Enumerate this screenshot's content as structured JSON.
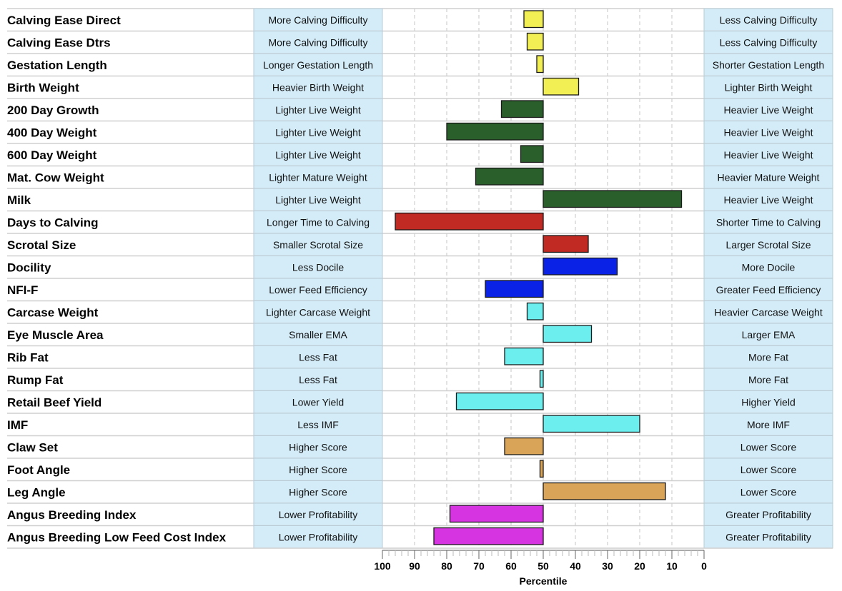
{
  "chart_data": {
    "type": "bar",
    "orientation": "horizontal",
    "xlabel": "Percentile",
    "xlim": [
      100,
      0
    ],
    "baseline": 50,
    "ticks": [
      100,
      90,
      80,
      70,
      60,
      50,
      40,
      30,
      20,
      10,
      0
    ],
    "tick_labels": [
      "100",
      "90",
      "80",
      "70",
      "60",
      "50",
      "40",
      "30",
      "20",
      "10",
      "0"
    ],
    "grid": true,
    "traits": [
      {
        "name": "Calving Ease Direct",
        "left": "More Calving Difficulty",
        "right": "Less Calving Difficulty",
        "value": 56,
        "color": "#f2ef54"
      },
      {
        "name": "Calving Ease Dtrs",
        "left": "More Calving Difficulty",
        "right": "Less Calving Difficulty",
        "value": 55,
        "color": "#f2ef54"
      },
      {
        "name": "Gestation Length",
        "left": "Longer Gestation Length",
        "right": "Shorter Gestation Length",
        "value": 52,
        "color": "#f2ef54"
      },
      {
        "name": "Birth Weight",
        "left": "Heavier Birth Weight",
        "right": "Lighter Birth Weight",
        "value": 39,
        "color": "#f2ef54"
      },
      {
        "name": "200 Day Growth",
        "left": "Lighter Live Weight",
        "right": "Heavier Live Weight",
        "value": 63,
        "color": "#2a5f2c"
      },
      {
        "name": "400 Day Weight",
        "left": "Lighter Live Weight",
        "right": "Heavier Live Weight",
        "value": 80,
        "color": "#2a5f2c"
      },
      {
        "name": "600 Day Weight",
        "left": "Lighter Live Weight",
        "right": "Heavier Live Weight",
        "value": 57,
        "color": "#2a5f2c"
      },
      {
        "name": "Mat. Cow Weight",
        "left": "Lighter Mature Weight",
        "right": "Heavier Mature Weight",
        "value": 71,
        "color": "#2a5f2c"
      },
      {
        "name": "Milk",
        "left": "Lighter Live Weight",
        "right": "Heavier Live Weight",
        "value": 7,
        "color": "#2a5f2c"
      },
      {
        "name": "Days to Calving",
        "left": "Longer Time to Calving",
        "right": "Shorter Time to Calving",
        "value": 96,
        "color": "#c02a22"
      },
      {
        "name": "Scrotal Size",
        "left": "Smaller Scrotal Size",
        "right": "Larger Scrotal Size",
        "value": 36,
        "color": "#c02a22"
      },
      {
        "name": "Docility",
        "left": "Less Docile",
        "right": "More Docile",
        "value": 27,
        "color": "#0a22e6"
      },
      {
        "name": "NFI-F",
        "left": "Lower Feed Efficiency",
        "right": "Greater Feed Efficiency",
        "value": 68,
        "color": "#0a22e6"
      },
      {
        "name": "Carcase Weight",
        "left": "Lighter Carcase Weight",
        "right": "Heavier Carcase Weight",
        "value": 55,
        "color": "#6ceeee"
      },
      {
        "name": "Eye Muscle Area",
        "left": "Smaller EMA",
        "right": "Larger EMA",
        "value": 35,
        "color": "#6ceeee"
      },
      {
        "name": "Rib Fat",
        "left": "Less Fat",
        "right": "More Fat",
        "value": 62,
        "color": "#6ceeee"
      },
      {
        "name": "Rump Fat",
        "left": "Less Fat",
        "right": "More Fat",
        "value": 51,
        "color": "#6ceeee"
      },
      {
        "name": "Retail Beef Yield",
        "left": "Lower Yield",
        "right": "Higher Yield",
        "value": 77,
        "color": "#6ceeee"
      },
      {
        "name": "IMF",
        "left": "Less IMF",
        "right": "More IMF",
        "value": 20,
        "color": "#6ceeee"
      },
      {
        "name": "Claw Set",
        "left": "Higher Score",
        "right": "Lower Score",
        "value": 62,
        "color": "#d9a358"
      },
      {
        "name": "Foot Angle",
        "left": "Higher Score",
        "right": "Lower Score",
        "value": 51,
        "color": "#d9a358"
      },
      {
        "name": "Leg Angle",
        "left": "Higher Score",
        "right": "Lower Score",
        "value": 12,
        "color": "#d9a358"
      },
      {
        "name": "Angus Breeding Index",
        "left": "Lower Profitability",
        "right": "Greater Profitability",
        "value": 79,
        "color": "#d634e0"
      },
      {
        "name": "Angus Breeding Low Feed Cost Index",
        "left": "Lower Profitability",
        "right": "Greater Profitability",
        "value": 84,
        "color": "#d634e0"
      }
    ]
  },
  "colors": {
    "box_fill": "#d3ecf8",
    "box_border": "#b9cbd5",
    "row_line": "#cfcfcf",
    "grid": "#c6c6c6"
  }
}
